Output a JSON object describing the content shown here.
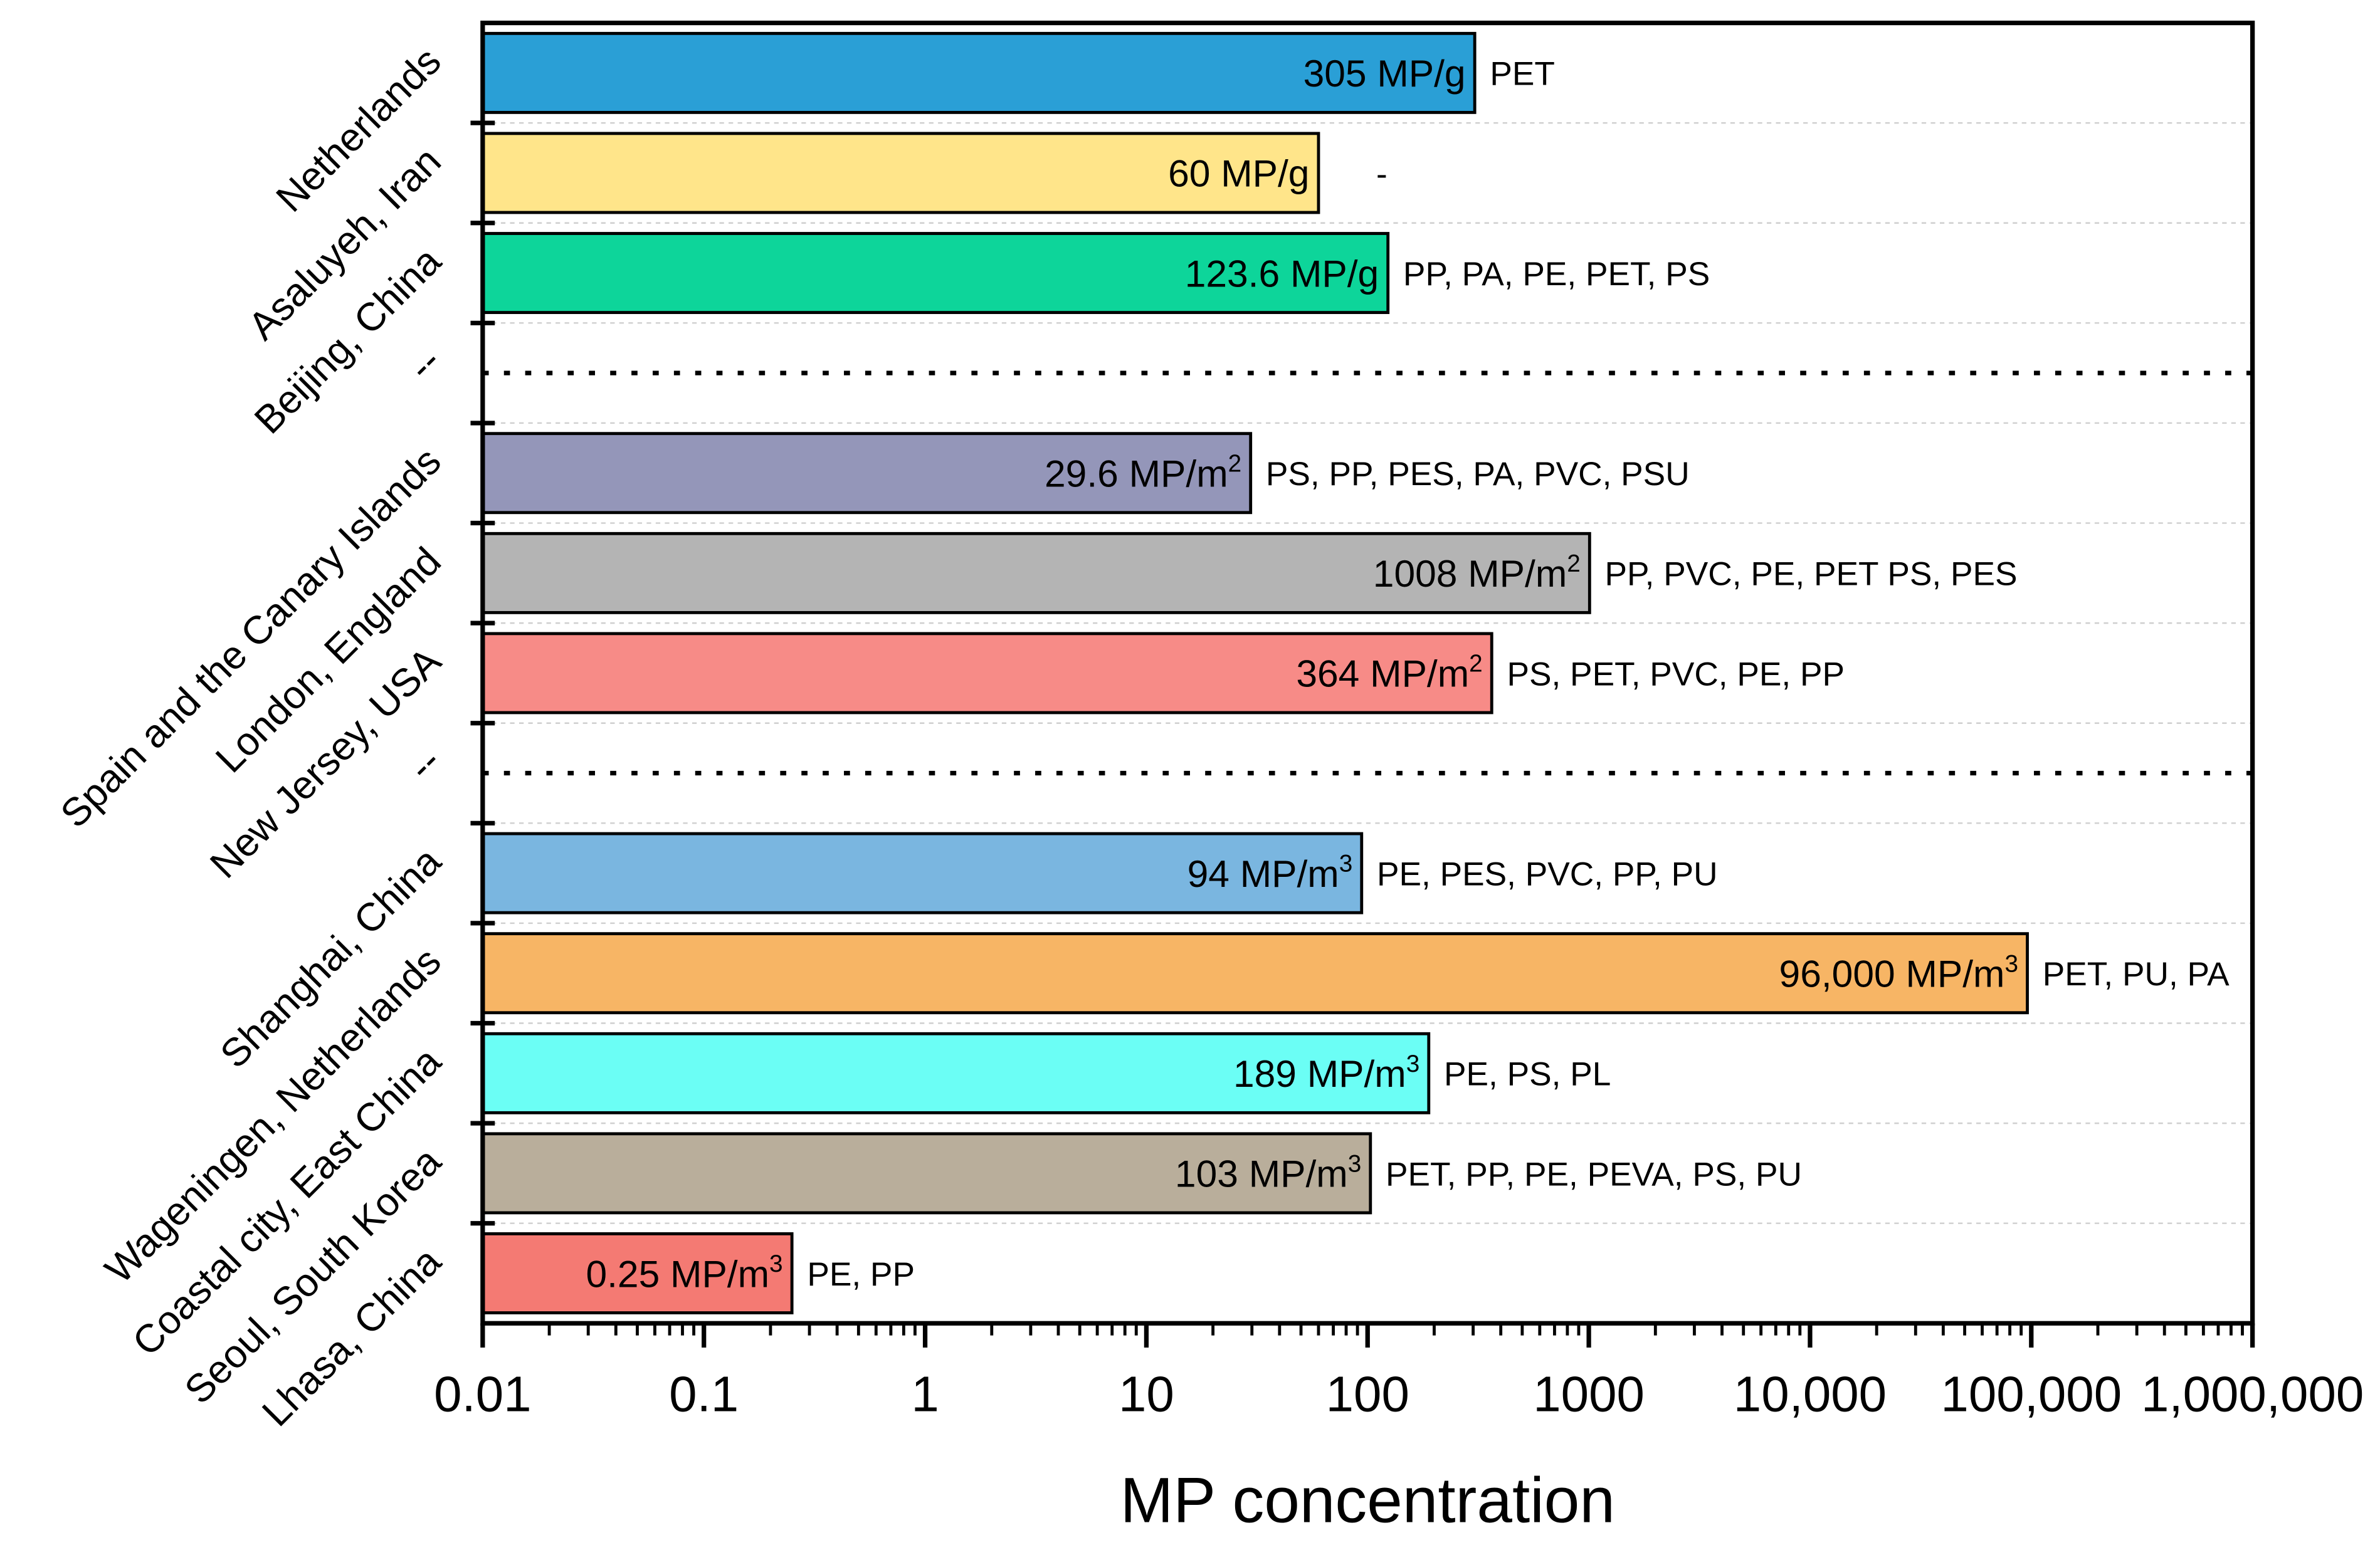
{
  "chart_data": {
    "type": "bar",
    "orientation": "horizontal",
    "xscale": "log",
    "xlabel": "MP concentration",
    "xlim": [
      0.01,
      1000000
    ],
    "xticks": [
      0.01,
      0.1,
      1,
      10,
      100,
      1000,
      10000,
      100000,
      1000000
    ],
    "xtick_labels": [
      "0.01",
      "0.1",
      "1",
      "10",
      "100",
      "1000",
      "10,000",
      "100,000",
      "1,000,000"
    ],
    "grid": "horizontal dashed between rows",
    "rows": [
      {
        "category": "Netherlands",
        "value": 305,
        "label": "305 MP/g",
        "sup": "",
        "polymers": "PET",
        "color": "#2a9fd6"
      },
      {
        "category": "Asaluyeh, Iran",
        "value": 60,
        "label": "60 MP/g",
        "sup": "",
        "polymers": "-",
        "color": "#ffe58a"
      },
      {
        "category": "Beijing, China",
        "value": 123.6,
        "label": "123.6 MP/g",
        "sup": "",
        "polymers": "PP, PA, PE, PET, PS",
        "color": "#0dd59a"
      },
      {
        "category": "--",
        "separator": true
      },
      {
        "category": "Spain and the Canary Islands",
        "value": 29.6,
        "label": "29.6 MP/m",
        "sup": "2",
        "polymers": "PS, PP, PES, PA, PVC, PSU",
        "color": "#9496b9"
      },
      {
        "category": "London, England",
        "value": 1008,
        "label": "1008 MP/m",
        "sup": "2",
        "polymers": "PP, PVC, PE, PET PS, PES",
        "color": "#b4b4b4"
      },
      {
        "category": "New Jersey, USA",
        "value": 364,
        "label": "364 MP/m",
        "sup": "2",
        "polymers": "PS, PET, PVC, PE, PP",
        "color": "#f78b87"
      },
      {
        "category": "--",
        "separator": true
      },
      {
        "category": "Shanghai, China",
        "value": 94,
        "label": "94 MP/m",
        "sup": "3",
        "polymers": "PE, PES, PVC, PP, PU",
        "color": "#7ab6e0"
      },
      {
        "category": "Wageningen, Netherlands",
        "value": 96000,
        "label": "96,000 MP/m",
        "sup": "3",
        "polymers": "PET, PU, PA",
        "color": "#f7b565"
      },
      {
        "category": "Coastal city, East China",
        "value": 189,
        "label": "189 MP/m",
        "sup": "3",
        "polymers": "PE, PS, PL",
        "color": "#6bfef5"
      },
      {
        "category": "Seoul, South Korea",
        "value": 103,
        "label": "103 MP/m",
        "sup": "3",
        "polymers": "PET, PP, PE, PEVA, PS, PU",
        "color": "#b9ae9b"
      },
      {
        "category": "Lhasa, China",
        "value": 0.25,
        "label": "0.25 MP/m",
        "sup": "3",
        "polymers": "PE, PP",
        "color": "#f47a73"
      }
    ]
  }
}
